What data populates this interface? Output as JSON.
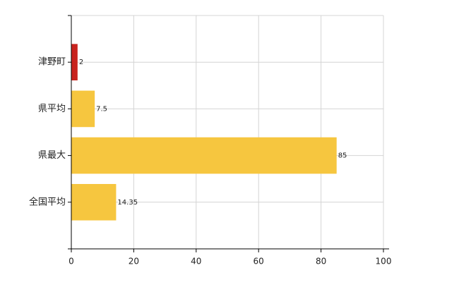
{
  "chart_data": {
    "type": "bar",
    "orientation": "horizontal",
    "categories": [
      "津野町",
      "県平均",
      "県最大",
      "全国平均"
    ],
    "values": [
      2,
      7.5,
      85,
      14.35
    ],
    "colors": [
      "#c8231e",
      "#f6c63f",
      "#f6c63f",
      "#f6c63f"
    ],
    "xlim": [
      0,
      100
    ],
    "xticks": [
      0,
      20,
      40,
      60,
      80,
      100
    ],
    "grid": true
  }
}
